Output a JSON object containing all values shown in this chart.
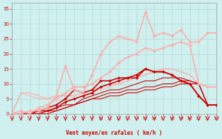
{
  "background_color": "#cff0ee",
  "grid_color": "#b0d8d0",
  "xlabel": "Vent moyen/en rafales ( km/h )",
  "xlabel_color": "#cc0000",
  "tick_color": "#cc0000",
  "ylim": [
    0,
    37
  ],
  "xlim": [
    0,
    23
  ],
  "yticks": [
    0,
    5,
    10,
    15,
    20,
    25,
    30,
    35
  ],
  "xticks": [
    0,
    1,
    2,
    3,
    4,
    5,
    6,
    7,
    8,
    9,
    10,
    11,
    12,
    13,
    14,
    15,
    16,
    17,
    18,
    19,
    20,
    21,
    22,
    23
  ],
  "series": [
    {
      "x": [
        0,
        1,
        2,
        3,
        4,
        5,
        6,
        7,
        8,
        9,
        10,
        11,
        12,
        13,
        14,
        15,
        16,
        17,
        18,
        19,
        20,
        21,
        22,
        23
      ],
      "y": [
        0,
        0,
        0,
        0,
        0,
        1,
        2,
        3,
        4,
        5,
        5,
        6,
        6,
        7,
        7,
        8,
        8,
        9,
        9,
        10,
        10,
        10,
        3,
        3
      ],
      "color": "#cc0000",
      "lw": 0.8,
      "marker": null,
      "ms": 0
    },
    {
      "x": [
        0,
        1,
        2,
        3,
        4,
        5,
        6,
        7,
        8,
        9,
        10,
        11,
        12,
        13,
        14,
        15,
        16,
        17,
        18,
        19,
        20,
        21,
        22,
        23
      ],
      "y": [
        0,
        0,
        0,
        0,
        1,
        1,
        2,
        3,
        4,
        5,
        6,
        7,
        7,
        8,
        8,
        9,
        9,
        10,
        10,
        11,
        11,
        10,
        3,
        3
      ],
      "color": "#cc0000",
      "lw": 0.8,
      "marker": null,
      "ms": 0
    },
    {
      "x": [
        0,
        1,
        2,
        3,
        4,
        5,
        6,
        7,
        8,
        9,
        10,
        11,
        12,
        13,
        14,
        15,
        16,
        17,
        18,
        19,
        20,
        21,
        22,
        23
      ],
      "y": [
        0,
        0,
        0,
        0,
        1,
        2,
        3,
        3,
        5,
        6,
        7,
        8,
        8,
        9,
        10,
        11,
        11,
        12,
        12,
        12,
        11,
        10,
        3,
        3
      ],
      "color": "#cc0000",
      "lw": 0.8,
      "marker": null,
      "ms": 0
    },
    {
      "x": [
        0,
        1,
        2,
        3,
        4,
        5,
        6,
        7,
        8,
        9,
        10,
        11,
        12,
        13,
        14,
        15,
        16,
        17,
        18,
        19,
        20,
        21,
        22,
        23
      ],
      "y": [
        0,
        0,
        0,
        1,
        1,
        2,
        4,
        5,
        6,
        7,
        9,
        10,
        11,
        12,
        13,
        15,
        14,
        14,
        13,
        11,
        10,
        6,
        3,
        3
      ],
      "color": "#cc0000",
      "lw": 1.2,
      "marker": "D",
      "ms": 2.0
    },
    {
      "x": [
        0,
        1,
        2,
        3,
        4,
        5,
        6,
        7,
        8,
        9,
        10,
        11,
        12,
        13,
        14,
        15,
        16,
        17,
        18,
        19,
        20,
        21,
        22,
        23
      ],
      "y": [
        0,
        0,
        0,
        1,
        2,
        3,
        5,
        8,
        7,
        8,
        11,
        11,
        12,
        12,
        12,
        15,
        14,
        14,
        13,
        11,
        10,
        6,
        3,
        3
      ],
      "color": "#cc0000",
      "lw": 1.2,
      "marker": "D",
      "ms": 2.0
    },
    {
      "x": [
        0,
        1,
        2,
        3,
        4,
        5,
        6,
        7,
        8,
        9,
        10,
        11,
        12,
        13,
        14,
        15,
        16,
        17,
        18,
        19,
        20,
        21,
        22,
        23
      ],
      "y": [
        0,
        7,
        6,
        5,
        5,
        6,
        6,
        6,
        7,
        8,
        9,
        10,
        10,
        11,
        12,
        13,
        14,
        15,
        15,
        14,
        13,
        10,
        9,
        9
      ],
      "color": "#ffaaaa",
      "lw": 0.8,
      "marker": null,
      "ms": 0
    },
    {
      "x": [
        0,
        1,
        2,
        3,
        4,
        5,
        6,
        7,
        8,
        9,
        10,
        11,
        12,
        13,
        14,
        15,
        16,
        17,
        18,
        19,
        20,
        21,
        22,
        23
      ],
      "y": [
        0,
        7,
        7,
        6,
        5,
        6,
        6,
        6,
        7,
        8,
        8,
        9,
        10,
        11,
        12,
        13,
        14,
        15,
        15,
        14,
        13,
        10,
        9,
        9
      ],
      "color": "#ffaaaa",
      "lw": 0.8,
      "marker": null,
      "ms": 0
    },
    {
      "x": [
        0,
        1,
        2,
        3,
        4,
        5,
        6,
        7,
        8,
        9,
        10,
        11,
        12,
        13,
        14,
        15,
        16,
        17,
        18,
        19,
        20,
        21,
        22,
        23
      ],
      "y": [
        0,
        1,
        0,
        2,
        3,
        5,
        7,
        9,
        9,
        10,
        12,
        14,
        17,
        19,
        20,
        22,
        21,
        22,
        23,
        24,
        23,
        10,
        9,
        9
      ],
      "color": "#ffaaaa",
      "lw": 1.2,
      "marker": "D",
      "ms": 2.0
    },
    {
      "x": [
        0,
        1,
        2,
        3,
        4,
        5,
        6,
        7,
        8,
        9,
        10,
        11,
        12,
        13,
        14,
        15,
        16,
        17,
        18,
        19,
        20,
        21,
        22,
        23
      ],
      "y": [
        0,
        0,
        1,
        1,
        2,
        6,
        16,
        8,
        7,
        13,
        20,
        24,
        26,
        25,
        24,
        34,
        26,
        27,
        26,
        28,
        24,
        24,
        27,
        27
      ],
      "color": "#ffaaaa",
      "lw": 1.2,
      "marker": "D",
      "ms": 2.0
    }
  ]
}
